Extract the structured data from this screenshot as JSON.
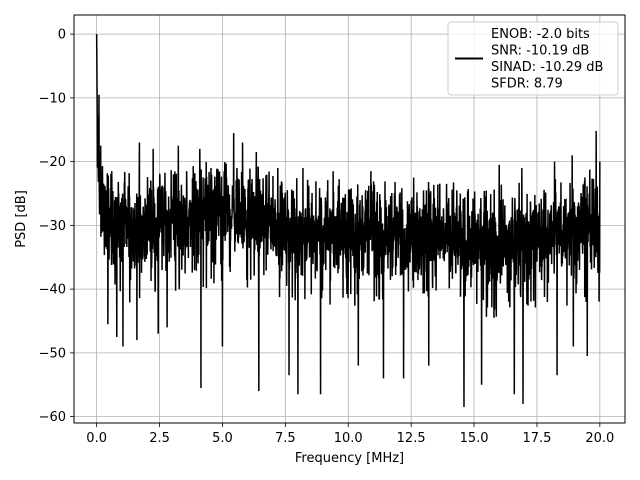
{
  "chart_data": {
    "type": "line",
    "xlabel": "Frequency [MHz]",
    "ylabel": "PSD [dB]",
    "xlim": [
      -0.9,
      21.0
    ],
    "ylim": [
      -61.0,
      3.0
    ],
    "xticks": [
      0.0,
      2.5,
      5.0,
      7.5,
      10.0,
      12.5,
      15.0,
      17.5,
      20.0
    ],
    "xtick_labels": [
      "0.0",
      "2.5",
      "5.0",
      "7.5",
      "10.0",
      "12.5",
      "15.0",
      "17.5",
      "20.0"
    ],
    "yticks": [
      0,
      -10,
      -20,
      -30,
      -40,
      -50,
      -60
    ],
    "ytick_labels": [
      "0",
      "−10",
      "−20",
      "−30",
      "−40",
      "−50",
      "−60"
    ],
    "grid": true,
    "legend_position": "top-right",
    "line_color": "#000000",
    "series": [
      {
        "legend_lines": [
          "ENOB: -2.0 bits",
          "SNR: -10.19 dB",
          "SINAD: -10.29 dB",
          "SFDR: 8.79"
        ],
        "x": [
          0.0,
          0.03,
          0.06,
          0.1,
          0.15,
          0.2,
          0.3,
          0.45,
          0.6,
          0.8,
          1.0,
          1.25,
          1.5,
          1.75,
          2.0,
          2.5,
          3.0,
          3.5,
          4.0,
          4.5,
          5.0,
          5.5,
          6.0,
          6.5,
          7.0,
          7.5,
          8.0,
          8.5,
          9.0,
          9.5,
          10.0,
          11.0,
          12.0,
          13.0,
          14.0,
          14.5,
          15.0,
          16.0,
          16.5,
          17.0,
          18.0,
          19.0,
          19.5,
          20.0
        ],
        "upper": [
          0,
          -9,
          -12,
          -14,
          -16,
          -18,
          -19,
          -20,
          -21,
          -21,
          -21.5,
          -21.5,
          -22,
          -21.5,
          -20.5,
          -20.5,
          -20.5,
          -20.5,
          -20,
          -20,
          -20,
          -19.5,
          -20,
          -20.5,
          -21.5,
          -22,
          -22.5,
          -22.5,
          -22.5,
          -22.5,
          -22.5,
          -23,
          -23,
          -23,
          -23,
          -23.5,
          -23.5,
          -23.5,
          -23.5,
          -23,
          -22.5,
          -21.5,
          -21,
          -20.5
        ],
        "lower": [
          0,
          -30,
          -33,
          -35,
          -37,
          -39,
          -40,
          -41,
          -42,
          -43,
          -43,
          -42.5,
          -42,
          -42,
          -42,
          -41.5,
          -41.5,
          -41,
          -40.5,
          -40,
          -39,
          -39.5,
          -40,
          -40.5,
          -41,
          -41.5,
          -42,
          -42.5,
          -43,
          -42.5,
          -42.5,
          -43,
          -43,
          -43.5,
          -44,
          -44,
          -44.5,
          -44.5,
          -44,
          -43.5,
          -43,
          -42.5,
          -42,
          -42
        ],
        "center": [
          0,
          -18,
          -22,
          -24,
          -25,
          -26,
          -27,
          -28,
          -29,
          -29.5,
          -30,
          -30,
          -30,
          -30,
          -29.5,
          -29.5,
          -29.5,
          -29,
          -29,
          -28.5,
          -28,
          -28,
          -28.5,
          -29,
          -29.5,
          -30,
          -30.5,
          -31,
          -31,
          -31,
          -31,
          -31.5,
          -31.5,
          -32,
          -32,
          -32,
          -32.5,
          -32.5,
          -32.5,
          -32,
          -31.5,
          -31,
          -31,
          -30.5
        ],
        "peaks_high": [
          [
            0.09,
            -9.5
          ],
          [
            0.45,
            -14.5
          ],
          [
            1.7,
            -17
          ],
          [
            2.25,
            -18
          ],
          [
            3.25,
            -17.5
          ],
          [
            4.1,
            -18
          ],
          [
            5.0,
            -16.5
          ],
          [
            5.45,
            -15.5
          ],
          [
            5.8,
            -17
          ],
          [
            6.35,
            -18.5
          ],
          [
            7.2,
            -21
          ],
          [
            8.2,
            -21
          ],
          [
            9.4,
            -21.5
          ],
          [
            10.9,
            -21.5
          ],
          [
            12.6,
            -22.5
          ],
          [
            14.6,
            -21.5
          ],
          [
            16.0,
            -20.5
          ],
          [
            16.9,
            -21
          ],
          [
            18.2,
            -20
          ],
          [
            18.9,
            -19
          ],
          [
            19.85,
            -15.2
          ],
          [
            20.0,
            -20
          ]
        ],
        "peaks_low": [
          [
            0.45,
            -45.5
          ],
          [
            0.8,
            -47.5
          ],
          [
            1.05,
            -49
          ],
          [
            1.6,
            -48
          ],
          [
            2.45,
            -47
          ],
          [
            2.8,
            -46
          ],
          [
            4.15,
            -55.5
          ],
          [
            5.0,
            -49
          ],
          [
            6.45,
            -56
          ],
          [
            7.65,
            -53.5
          ],
          [
            8.0,
            -56.5
          ],
          [
            8.9,
            -56.5
          ],
          [
            10.4,
            -52
          ],
          [
            11.4,
            -54
          ],
          [
            12.2,
            -54
          ],
          [
            13.2,
            -52
          ],
          [
            14.6,
            -58.5
          ],
          [
            15.3,
            -55
          ],
          [
            16.6,
            -56.5
          ],
          [
            16.95,
            -58
          ],
          [
            18.3,
            -53.5
          ],
          [
            18.95,
            -49
          ],
          [
            19.5,
            -50.5
          ]
        ]
      }
    ]
  }
}
